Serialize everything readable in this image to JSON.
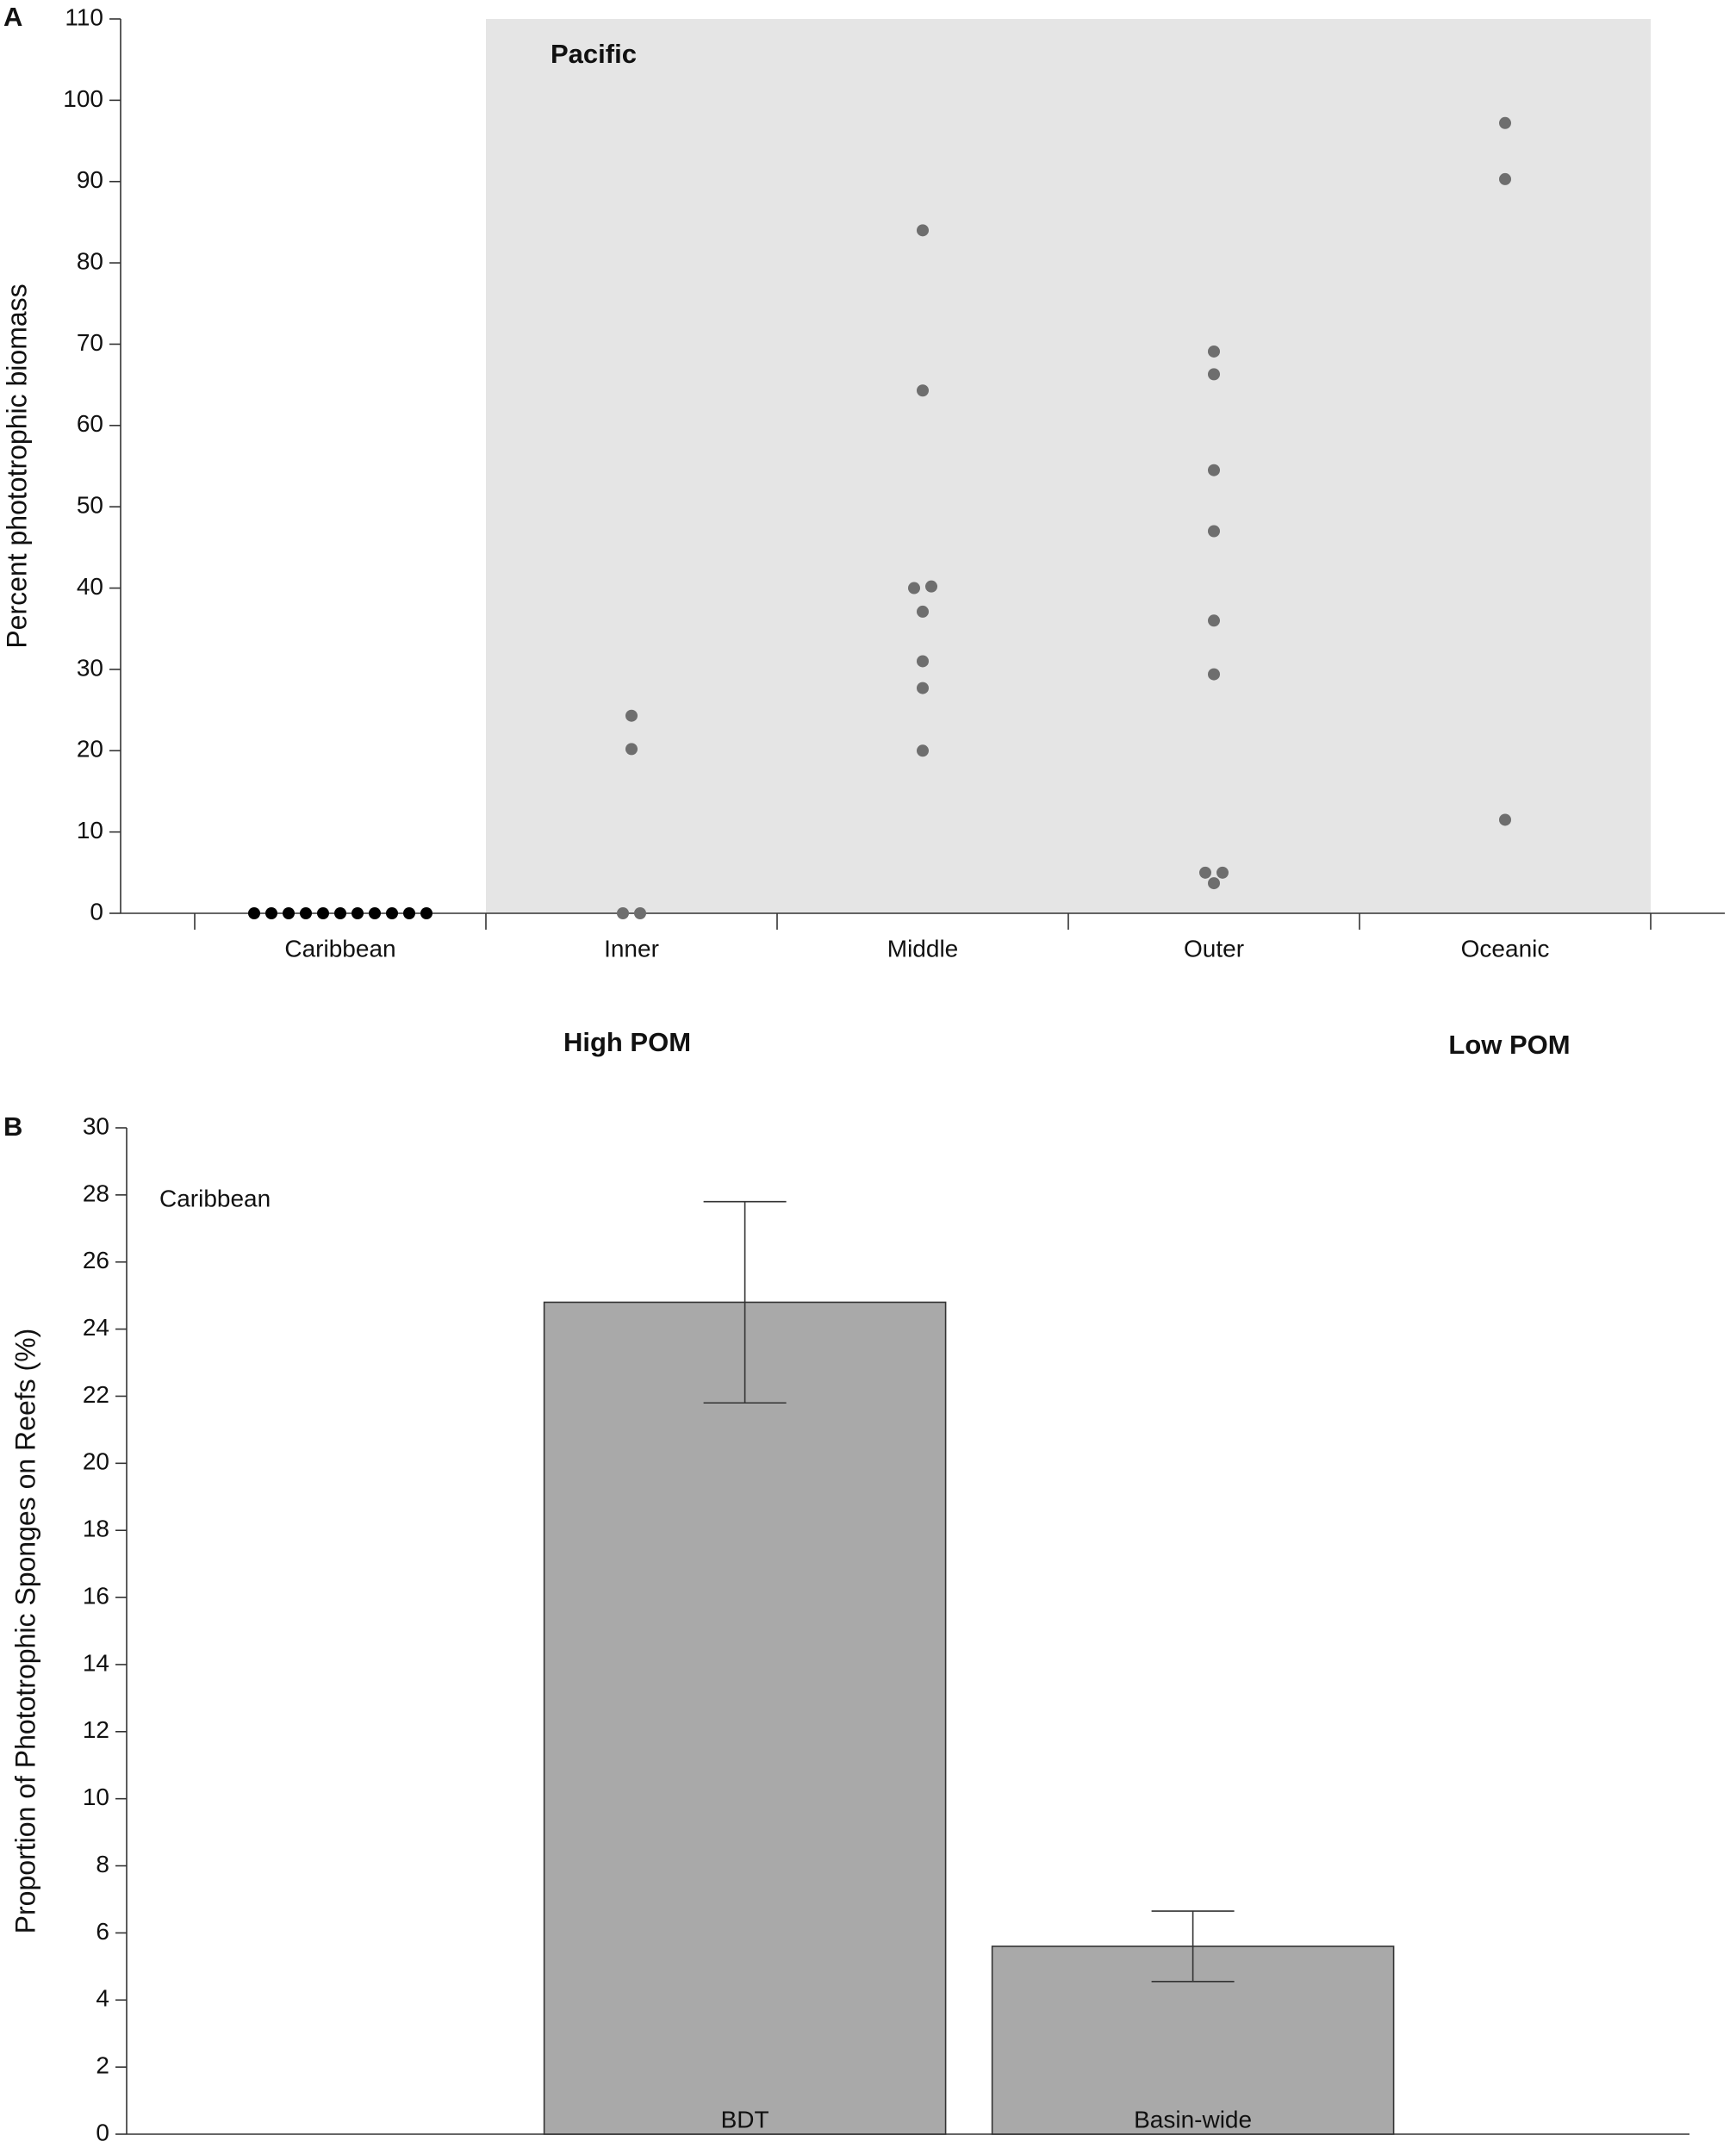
{
  "chart_data": [
    {
      "type": "strip",
      "panel_label": "A",
      "y_label": "Percent phototrophic biomass",
      "categories": [
        "Caribbean",
        "Inner",
        "Middle",
        "Outer",
        "Oceanic"
      ],
      "values": [
        [
          0,
          0,
          0,
          0,
          0,
          0,
          0,
          0,
          0,
          0,
          0
        ],
        [
          24.3,
          20.2,
          0,
          0
        ],
        [
          84,
          64.3,
          40,
          40.2,
          37.1,
          31,
          27.7,
          20
        ],
        [
          69.1,
          66.3,
          54.5,
          47,
          36,
          29.4,
          5,
          5,
          3.7
        ],
        [
          97.2,
          90.3,
          11.5
        ]
      ],
      "colors": [
        "#000000",
        "#6e6e6e",
        "#6e6e6e",
        "#6e6e6e",
        "#6e6e6e"
      ],
      "ylim": [
        0,
        110
      ],
      "yticks": [
        0,
        10,
        20,
        30,
        40,
        50,
        60,
        70,
        80,
        90,
        100,
        110
      ],
      "shaded_region": {
        "label": "Pacific",
        "color": "#e5e5e5",
        "from": "Inner",
        "to": "Oceanic"
      },
      "annotations": [
        "High POM",
        "Low POM"
      ]
    },
    {
      "type": "bar",
      "panel_label": "B",
      "y_label": "Proportion of Phototrophic Sponges on Reefs (%)",
      "annotation": "Caribbean",
      "categories": [
        "BDT",
        "Basin-wide"
      ],
      "values": [
        24.8,
        5.6
      ],
      "errors": [
        3.0,
        1.05
      ],
      "color": "#a9a9a9",
      "ylim": [
        0,
        30
      ],
      "yticks": [
        0,
        2,
        4,
        6,
        8,
        10,
        12,
        14,
        16,
        18,
        20,
        22,
        24,
        26,
        28,
        30
      ]
    }
  ]
}
